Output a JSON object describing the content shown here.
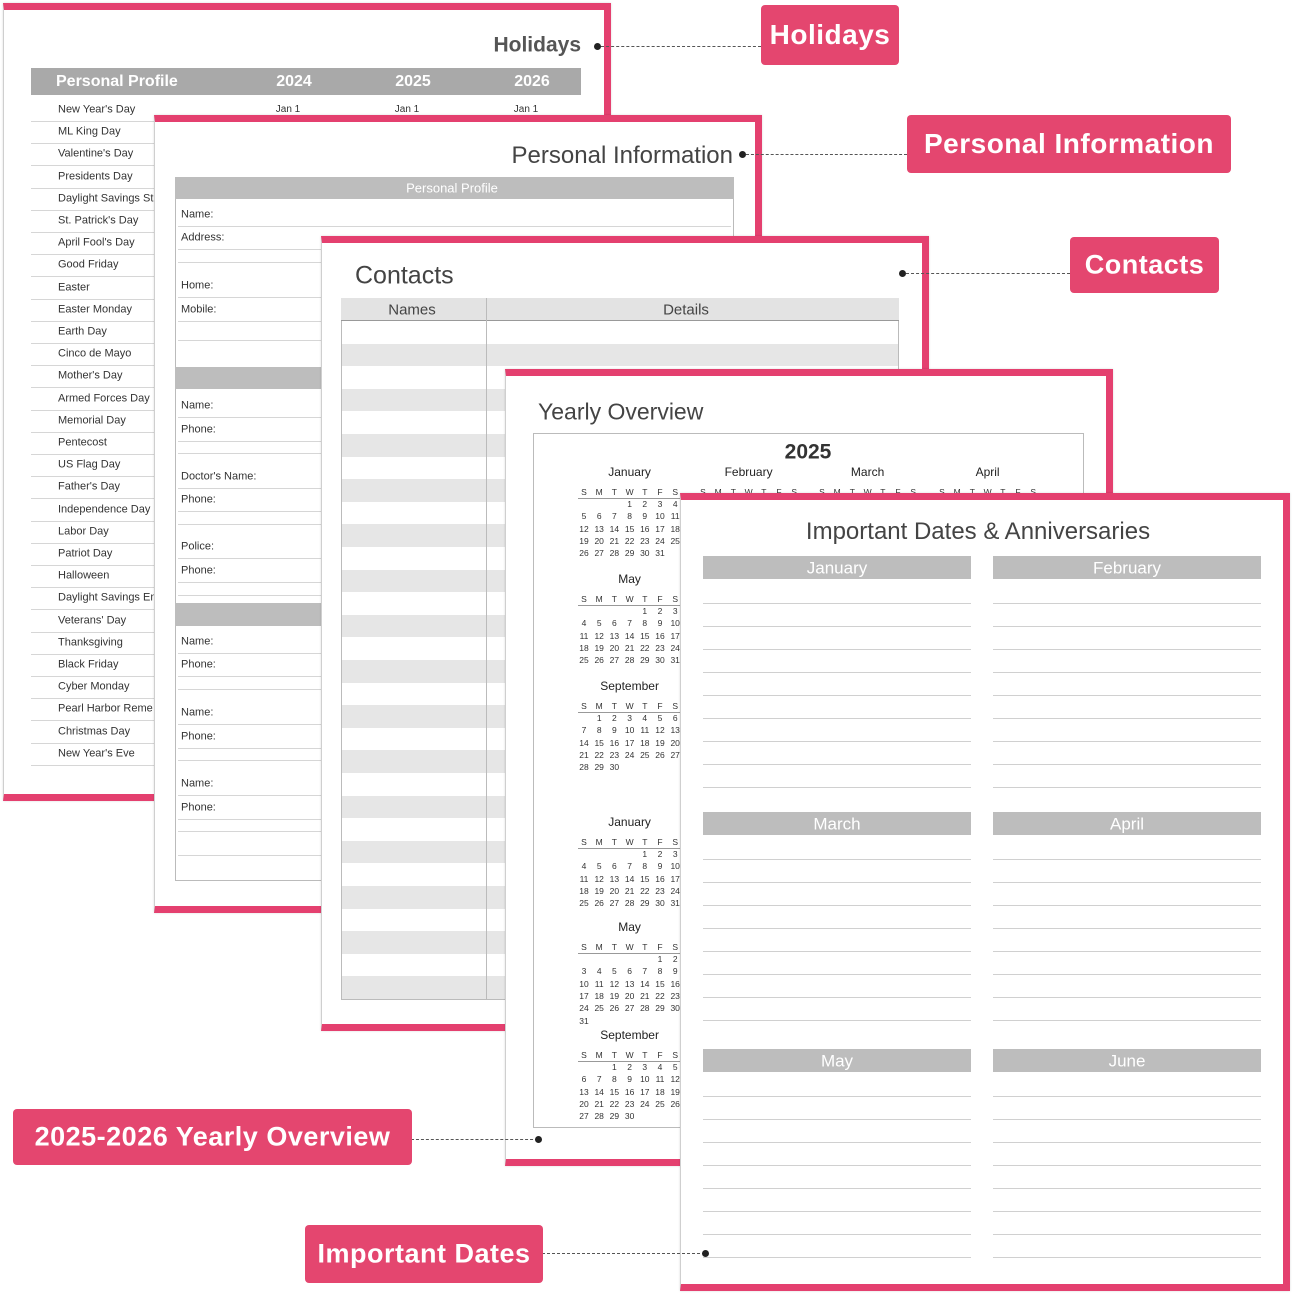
{
  "callouts": [
    "Holidays",
    "Personal Information",
    "Contacts",
    "2025-2026 Yearly Overview",
    "Important Dates"
  ],
  "holidays_page": {
    "title": "Holidays",
    "header": [
      "Personal Profile",
      "2024",
      "2025",
      "2026"
    ],
    "first_row_dates": [
      "Jan 1",
      "Jan 1",
      "Jan 1"
    ],
    "holidays": [
      "New Year's Day",
      "ML King Day",
      "Valentine's Day",
      "Presidents Day",
      "Daylight Savings St",
      "St. Patrick's Day",
      "April Fool's Day",
      "Good Friday",
      "Easter",
      "Easter Monday",
      "Earth Day",
      "Cinco de Mayo",
      "Mother's Day",
      "Armed Forces Day",
      "Memorial Day",
      "Pentecost",
      "US Flag Day",
      "Father's Day",
      "Independence Day",
      "Labor Day",
      "Patriot Day",
      "Halloween",
      "Daylight Savings En",
      "Veterans' Day",
      "Thanksgiving",
      "Black Friday",
      "Cyber Monday",
      "Pearl Harbor Reme",
      "Christmas Day",
      "New Year's Eve"
    ]
  },
  "personal_page": {
    "title": "Personal Information",
    "section": "Personal Profile",
    "fields": [
      "Name:",
      "Address:",
      "Home:",
      "Mobile:",
      "Name:",
      "Phone:",
      "Doctor's Name:",
      "Phone:",
      "Police:",
      "Phone:",
      "Name:",
      "Phone:",
      "Name:",
      "Phone:",
      "Name:",
      "Phone:"
    ]
  },
  "contacts_page": {
    "title": "Contacts",
    "columns": [
      "Names",
      "Details"
    ]
  },
  "yearly_page": {
    "title": "Yearly Overview",
    "year": "2025",
    "weekdays": [
      "S",
      "M",
      "T",
      "W",
      "T",
      "F",
      "S"
    ],
    "calendars": [
      {
        "month": "January",
        "weeks": [
          [
            null,
            null,
            null,
            1,
            2,
            3,
            4
          ],
          [
            5,
            6,
            7,
            8,
            9,
            10,
            11
          ],
          [
            12,
            13,
            14,
            15,
            16,
            17,
            18
          ],
          [
            19,
            20,
            21,
            22,
            23,
            24,
            25
          ],
          [
            26,
            27,
            28,
            29,
            30,
            31
          ]
        ]
      },
      {
        "month": "February"
      },
      {
        "month": "March"
      },
      {
        "month": "April"
      },
      {
        "month": "May",
        "weeks": [
          [
            null,
            null,
            null,
            null,
            1,
            2,
            3
          ],
          [
            4,
            5,
            6,
            7,
            8,
            9,
            10
          ],
          [
            11,
            12,
            13,
            14,
            15,
            16,
            17
          ],
          [
            18,
            19,
            20,
            21,
            22,
            23,
            24
          ],
          [
            25,
            26,
            27,
            28,
            29,
            30,
            31
          ]
        ]
      },
      {
        "month": "September",
        "weeks": [
          [
            null,
            1,
            2,
            3,
            4,
            5,
            6
          ],
          [
            7,
            8,
            9,
            10,
            11,
            12,
            13
          ],
          [
            14,
            15,
            16,
            17,
            18,
            19,
            20
          ],
          [
            21,
            22,
            23,
            24,
            25,
            26,
            27
          ],
          [
            28,
            29,
            30
          ]
        ]
      },
      {
        "month": "January",
        "weeks": [
          [
            null,
            null,
            null,
            null,
            1,
            2,
            3
          ],
          [
            4,
            5,
            6,
            7,
            8,
            9,
            10
          ],
          [
            11,
            12,
            13,
            14,
            15,
            16,
            17
          ],
          [
            18,
            19,
            20,
            21,
            22,
            23,
            24
          ],
          [
            25,
            26,
            27,
            28,
            29,
            30,
            31
          ]
        ]
      },
      {
        "month": "May",
        "weeks": [
          [
            null,
            null,
            null,
            null,
            null,
            1,
            2
          ],
          [
            3,
            4,
            5,
            6,
            7,
            8,
            9
          ],
          [
            10,
            11,
            12,
            13,
            14,
            15,
            16
          ],
          [
            17,
            18,
            19,
            20,
            21,
            22,
            23
          ],
          [
            24,
            25,
            26,
            27,
            28,
            29,
            30
          ],
          [
            31
          ]
        ]
      },
      {
        "month": "September",
        "weeks": [
          [
            null,
            null,
            1,
            2,
            3,
            4,
            5
          ],
          [
            6,
            7,
            8,
            9,
            10,
            11,
            12
          ],
          [
            13,
            14,
            15,
            16,
            17,
            18,
            19
          ],
          [
            20,
            21,
            22,
            23,
            24,
            25,
            26
          ],
          [
            27,
            28,
            29,
            30
          ]
        ]
      }
    ]
  },
  "dates_page": {
    "title": "Important Dates & Anniversaries",
    "months": [
      "January",
      "February",
      "March",
      "April",
      "May",
      "June"
    ]
  }
}
